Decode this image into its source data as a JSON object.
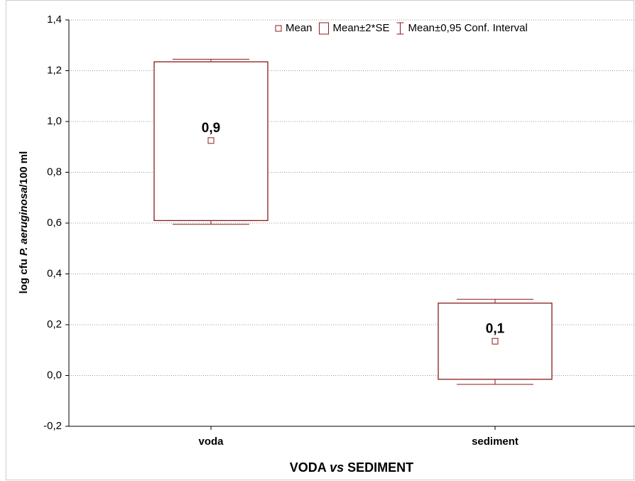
{
  "chart_data": {
    "type": "box",
    "xlabel": [
      "VODA ",
      "vs",
      " SEDIMENT"
    ],
    "ylabel": [
      "log cfu ",
      "P. aeruginosa",
      "/100 ml"
    ],
    "legend": [
      "Mean",
      "Mean±2*SE",
      "Mean±0,95 Conf. Interval"
    ],
    "color": "#8b1a1a",
    "categories": [
      "voda",
      "sediment"
    ],
    "means": [
      0.925,
      0.135
    ],
    "value_labels": [
      "0,9",
      "0,1"
    ],
    "box_low": [
      0.61,
      -0.015
    ],
    "box_high": [
      1.235,
      0.285
    ],
    "ci_low": [
      0.595,
      -0.035
    ],
    "ci_high": [
      1.245,
      0.3
    ],
    "ylim": [
      -0.2,
      1.4
    ],
    "yticks": [
      {
        "value": -0.2,
        "label": "-0,2"
      },
      {
        "value": 0,
        "label": "0,0"
      },
      {
        "value": 0.2,
        "label": "0,2"
      },
      {
        "value": 0.4,
        "label": "0,4"
      },
      {
        "value": 0.6,
        "label": "0,6"
      },
      {
        "value": 0.8,
        "label": "0,8"
      },
      {
        "value": 1.0,
        "label": "1,0"
      },
      {
        "value": 1.2,
        "label": "1,2"
      },
      {
        "value": 1.4,
        "label": "1,4"
      }
    ],
    "grid": true
  }
}
